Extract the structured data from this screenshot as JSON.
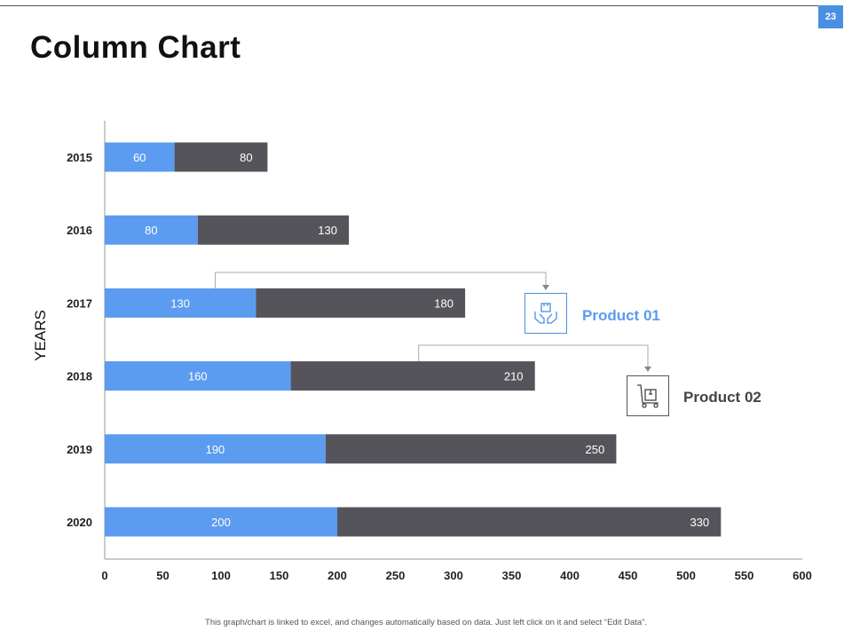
{
  "page": {
    "number": "23",
    "title": "Column Chart",
    "footer_note": "This graph/chart is linked to excel, and changes automatically based on data. Just left click on it and select “Edit Data”."
  },
  "colors": {
    "product01": "#5b9bf0",
    "product02": "#55545b",
    "accent": "#4a90e2"
  },
  "legend": {
    "product01_label": "Product 01",
    "product02_label": "Product 02",
    "product01_icon": "hands-box-icon",
    "product02_icon": "hand-truck-box-icon"
  },
  "chart_data": {
    "type": "bar",
    "orientation": "horizontal",
    "stacked": true,
    "title": "Column Chart",
    "ylabel": "YEARS",
    "xlabel": "",
    "categories": [
      "2015",
      "2016",
      "2017",
      "2018",
      "2019",
      "2020"
    ],
    "series": [
      {
        "name": "Product 01",
        "values": [
          60,
          80,
          130,
          160,
          190,
          200
        ]
      },
      {
        "name": "Product 02",
        "values": [
          80,
          130,
          180,
          210,
          250,
          330
        ]
      }
    ],
    "xlim": [
      0,
      600
    ],
    "xticks": [
      0,
      50,
      100,
      150,
      200,
      250,
      300,
      350,
      400,
      450,
      500,
      550,
      600
    ],
    "grid": false
  }
}
